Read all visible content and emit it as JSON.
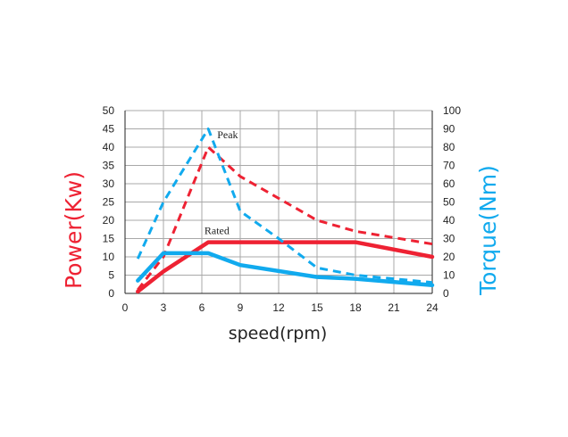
{
  "chart_data": {
    "type": "line",
    "xlabel": "speed(rpm)",
    "ylabel_left": "Power(Kw)",
    "ylabel_right": "Torque(Nm)",
    "xlim": [
      0,
      24
    ],
    "ylim_left": [
      0,
      50
    ],
    "ylim_right": [
      0,
      100
    ],
    "xticks": [
      0,
      3,
      6,
      9,
      12,
      15,
      18,
      21,
      24
    ],
    "yticks_left": [
      0,
      5,
      10,
      15,
      20,
      25,
      30,
      35,
      40,
      45,
      50
    ],
    "yticks_right": [
      0,
      10,
      20,
      30,
      40,
      50,
      60,
      70,
      80,
      90,
      100
    ],
    "grid": true,
    "colors": {
      "power": "#ee2233",
      "torque": "#11aaee",
      "grid": "#a8a8a8",
      "axis": "#222222"
    },
    "annotations": [
      {
        "text": "Peak",
        "x": 7.2,
        "y": 42.5
      },
      {
        "text": "Rated",
        "x": 6.2,
        "y": 16.2
      }
    ],
    "series": [
      {
        "axis": "left",
        "style": "solid",
        "points": [
          [
            1,
            0.5
          ],
          [
            3,
            6
          ],
          [
            6.5,
            14
          ],
          [
            18,
            14
          ],
          [
            24,
            10
          ]
        ]
      },
      {
        "axis": "left",
        "style": "dashed",
        "points": [
          [
            1,
            1
          ],
          [
            3,
            10
          ],
          [
            6.5,
            40
          ],
          [
            9,
            32
          ],
          [
            15,
            20
          ],
          [
            18,
            17
          ],
          [
            24,
            13.5
          ]
        ]
      },
      {
        "axis": "right",
        "style": "solid",
        "points": [
          [
            1,
            7
          ],
          [
            3,
            22
          ],
          [
            6.5,
            22
          ],
          [
            9,
            15.5
          ],
          [
            15,
            9
          ],
          [
            18,
            8
          ],
          [
            24,
            4.5
          ]
        ]
      },
      {
        "axis": "right",
        "style": "dashed",
        "points": [
          [
            1,
            19
          ],
          [
            3,
            50
          ],
          [
            6.5,
            90
          ],
          [
            9,
            45
          ],
          [
            12,
            30
          ],
          [
            15,
            14
          ],
          [
            18,
            10
          ],
          [
            24,
            6
          ]
        ]
      }
    ]
  }
}
